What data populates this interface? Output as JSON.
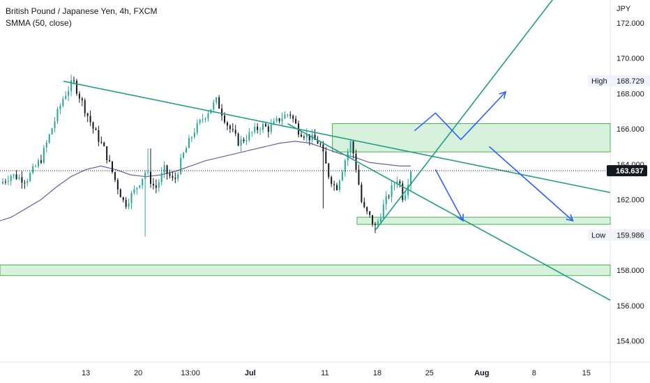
{
  "header": {
    "symbol_title": "British Pound / Japanese Yen, 4h, FXCM",
    "indicator": "SMMA (50, close)"
  },
  "colors": {
    "up": "#26a69a",
    "down": "#131722",
    "smma": "#6b5fa0",
    "trendline": "#1f9e84",
    "projection": "#2962ff",
    "zone_fill": "#c8ecd0",
    "zone_stroke": "#4caf50",
    "price_label_bg": "#131722"
  },
  "chart_data": {
    "type": "line",
    "title": "British Pound / Japanese Yen, 4h, FXCM",
    "y_unit": "JPY",
    "ylim": [
      152.8,
      173.3
    ],
    "y_ticks": [
      "172.000",
      "170.000",
      "168.000",
      "166.000",
      "164.000",
      "162.000",
      "160.000",
      "158.000",
      "156.000",
      "154.000"
    ],
    "x_ticks": [
      {
        "label": "13",
        "day": 13
      },
      {
        "label": "20",
        "day": 20
      },
      {
        "label": "13:00",
        "day": 27
      },
      {
        "label": "Jul",
        "day": 35
      },
      {
        "label": "11",
        "day": 45
      },
      {
        "label": "18",
        "day": 52
      },
      {
        "label": "25",
        "day": 59
      },
      {
        "label": "Aug",
        "day": 66
      },
      {
        "label": "8",
        "day": 73
      },
      {
        "label": "15",
        "day": 80
      }
    ],
    "x_range": [
      1.5,
      83.2
    ],
    "price_path": [
      [
        1.5,
        162.9
      ],
      [
        3,
        163.4
      ],
      [
        5,
        163.1
      ],
      [
        7,
        164.3
      ],
      [
        8.5,
        166.1
      ],
      [
        10,
        167.8
      ],
      [
        11.3,
        168.7
      ],
      [
        12.5,
        167.5
      ],
      [
        14,
        166.0
      ],
      [
        15.5,
        164.8
      ],
      [
        17,
        163.0
      ],
      [
        18.2,
        161.7
      ],
      [
        19.5,
        162.5
      ],
      [
        21,
        163.6
      ],
      [
        22.3,
        162.6
      ],
      [
        23.5,
        163.7
      ],
      [
        24.8,
        163.0
      ],
      [
        26,
        164.5
      ],
      [
        27.5,
        165.9
      ],
      [
        29,
        166.8
      ],
      [
        30.5,
        167.6
      ],
      [
        32,
        166.2
      ],
      [
        33.5,
        165.2
      ],
      [
        35,
        165.7
      ],
      [
        36.5,
        166.2
      ],
      [
        37.5,
        166.0
      ],
      [
        39,
        166.6
      ],
      [
        40.3,
        166.9
      ],
      [
        41.5,
        165.9
      ],
      [
        43,
        165.5
      ],
      [
        44.3,
        165.2
      ],
      [
        45.5,
        163.4
      ],
      [
        46.5,
        162.6
      ],
      [
        47.5,
        164.0
      ],
      [
        48.5,
        165.3
      ],
      [
        49.3,
        163.5
      ],
      [
        50,
        161.6
      ],
      [
        51,
        161.0
      ],
      [
        51.8,
        160.4
      ],
      [
        52.8,
        161.6
      ],
      [
        53.8,
        162.5
      ],
      [
        54.8,
        163.3
      ],
      [
        55.5,
        162.0
      ],
      [
        56.5,
        163.7
      ]
    ],
    "smma": [
      [
        1.5,
        160.8
      ],
      [
        3,
        161.0
      ],
      [
        5,
        161.5
      ],
      [
        7,
        162.0
      ],
      [
        9,
        162.7
      ],
      [
        11,
        163.3
      ],
      [
        13,
        163.7
      ],
      [
        15,
        163.9
      ],
      [
        17,
        163.7
      ],
      [
        19,
        163.4
      ],
      [
        21,
        163.3
      ],
      [
        23,
        163.4
      ],
      [
        25,
        163.6
      ],
      [
        27,
        163.9
      ],
      [
        29,
        164.2
      ],
      [
        31,
        164.4
      ],
      [
        33,
        164.6
      ],
      [
        35,
        164.8
      ],
      [
        37,
        165.0
      ],
      [
        39,
        165.2
      ],
      [
        41,
        165.3
      ],
      [
        43,
        165.2
      ],
      [
        45,
        164.9
      ],
      [
        47,
        164.6
      ],
      [
        49,
        164.4
      ],
      [
        51,
        164.1
      ],
      [
        53,
        164.0
      ],
      [
        55,
        163.9
      ],
      [
        56.5,
        163.9
      ]
    ],
    "high_spikes": [
      [
        11.3,
        168.9
      ],
      [
        21.5,
        164.9
      ],
      [
        30.6,
        167.8
      ],
      [
        40.3,
        167.0
      ]
    ],
    "low_spikes": [
      [
        20.9,
        159.9
      ],
      [
        44.9,
        161.5
      ],
      [
        51.8,
        160.1
      ]
    ],
    "current_price": "163.637",
    "high": {
      "label": "High",
      "value": "168.729"
    },
    "low": {
      "label": "Low",
      "value": "159.986"
    },
    "trendlines": [
      [
        [
          10,
          168.7
        ],
        [
          83.2,
          162.4
        ]
      ],
      [
        [
          40,
          166.3
        ],
        [
          83.2,
          156.3
        ]
      ],
      [
        [
          51.8,
          160.3
        ],
        [
          84,
          178
        ]
      ]
    ],
    "zones": [
      [
        [
          46,
          166.3
        ],
        [
          83.2,
          164.7
        ]
      ],
      [
        [
          49.3,
          161.0
        ],
        [
          83.2,
          160.6
        ]
      ],
      [
        [
          1.5,
          158.3
        ],
        [
          83.2,
          157.7
        ]
      ]
    ],
    "projections": [
      [
        [
          57,
          165.9
        ],
        [
          59.8,
          166.9
        ],
        [
          63.2,
          165.4
        ],
        [
          69.2,
          168.1
        ]
      ],
      [
        [
          59.8,
          163.7
        ],
        [
          63.5,
          160.8
        ]
      ],
      [
        [
          67,
          165.0
        ],
        [
          78.2,
          160.8
        ]
      ]
    ]
  }
}
